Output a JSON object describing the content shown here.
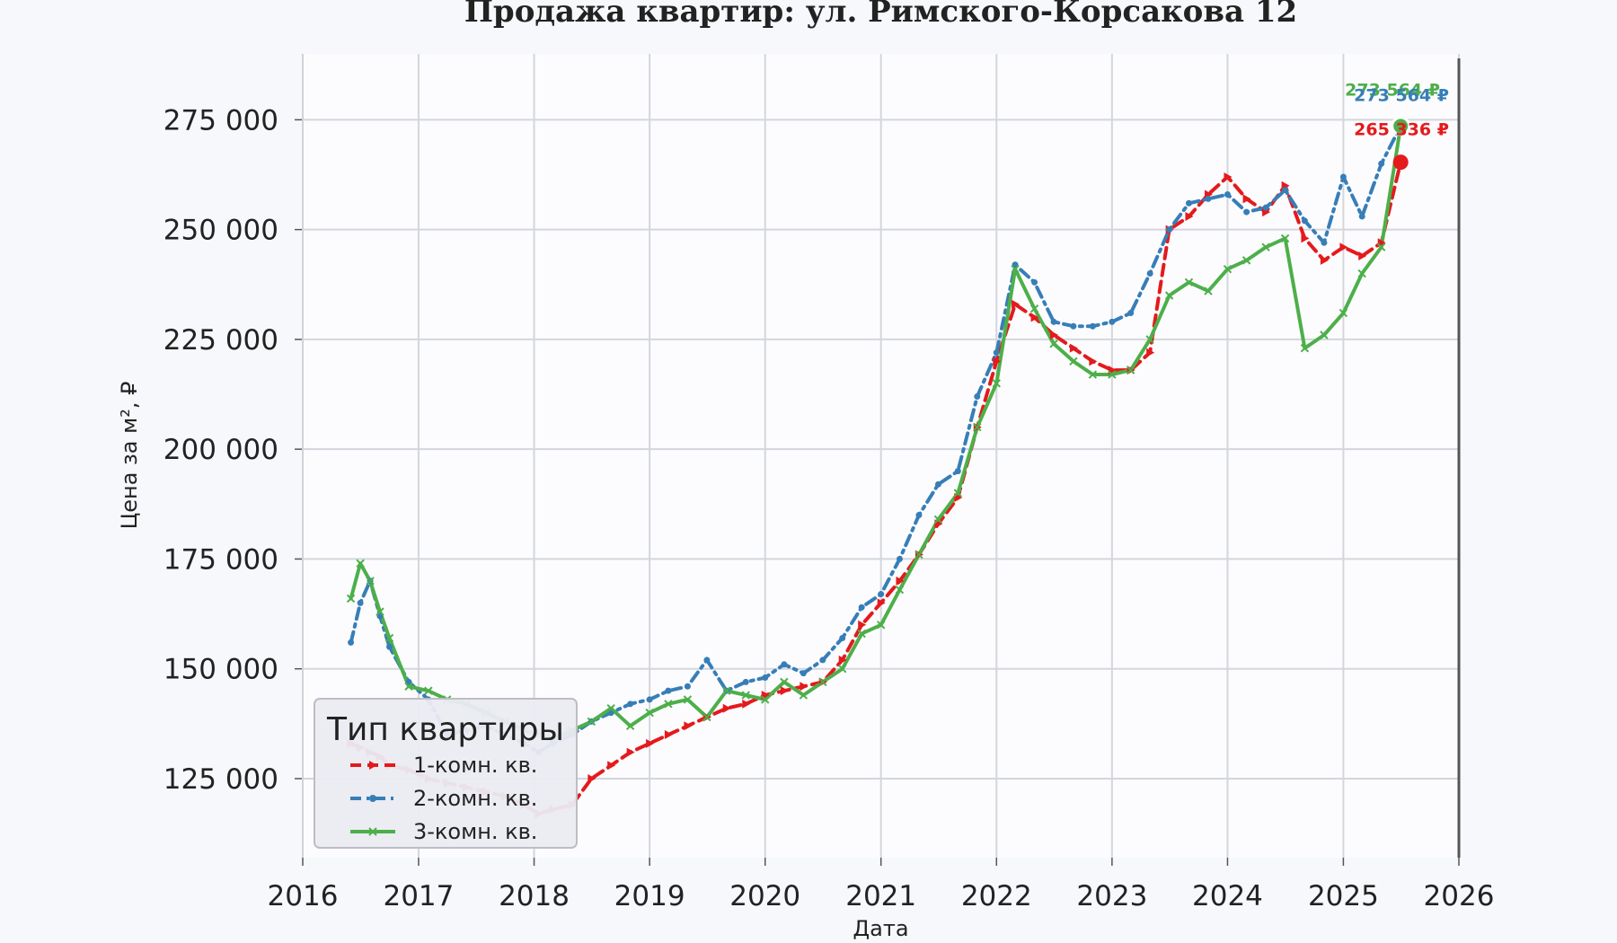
{
  "chart_data": {
    "type": "line",
    "title": "Продажа квартир: ул. Римского-Корсакова 12",
    "xlabel": "Дата",
    "ylabel": "Цена за м², ₽",
    "xlim": [
      "2016-01-01",
      "2026-01-01"
    ],
    "ylim": [
      107000,
      290000
    ],
    "x_ticks": [
      "2016",
      "2017",
      "2018",
      "2019",
      "2020",
      "2021",
      "2022",
      "2023",
      "2024",
      "2025",
      "2026"
    ],
    "y_ticks": [
      "125 000",
      "150 000",
      "175 000",
      "200 000",
      "225 000",
      "250 000",
      "275 000"
    ],
    "y_tick_values": [
      125000,
      150000,
      175000,
      200000,
      225000,
      250000,
      275000
    ],
    "grid": true,
    "legend": {
      "title": "Тип квартиры",
      "placement": "lower-left",
      "entries": [
        "1-комн. кв.",
        "2-комн. кв.",
        "3-комн. кв."
      ]
    },
    "series": [
      {
        "name": "1-комн. кв.",
        "color": "#e41a1c",
        "style": "dashed",
        "marker": "triangle-right",
        "points": [
          [
            "2016-06-01",
            133000
          ],
          [
            "2016-07-01",
            132000
          ],
          [
            "2016-08-01",
            131000
          ],
          [
            "2016-09-01",
            130000
          ],
          [
            "2016-10-01",
            128000
          ],
          [
            "2016-12-01",
            127000
          ],
          [
            "2017-02-01",
            125000
          ],
          [
            "2017-04-01",
            124000
          ],
          [
            "2017-06-01",
            123000
          ],
          [
            "2017-08-01",
            122000
          ],
          [
            "2017-10-01",
            121000
          ],
          [
            "2017-12-01",
            119000
          ],
          [
            "2018-01-15",
            117000
          ],
          [
            "2018-03-01",
            118000
          ],
          [
            "2018-05-01",
            119000
          ],
          [
            "2018-07-01",
            125000
          ],
          [
            "2018-09-01",
            128000
          ],
          [
            "2018-11-01",
            131000
          ],
          [
            "2019-01-01",
            133000
          ],
          [
            "2019-03-01",
            135000
          ],
          [
            "2019-05-01",
            137000
          ],
          [
            "2019-07-01",
            139000
          ],
          [
            "2019-09-01",
            141000
          ],
          [
            "2019-11-01",
            142000
          ],
          [
            "2020-01-01",
            144000
          ],
          [
            "2020-03-01",
            145000
          ],
          [
            "2020-05-01",
            146000
          ],
          [
            "2020-07-01",
            147000
          ],
          [
            "2020-09-01",
            152000
          ],
          [
            "2020-11-01",
            160000
          ],
          [
            "2021-01-01",
            165000
          ],
          [
            "2021-03-01",
            170000
          ],
          [
            "2021-05-01",
            176000
          ],
          [
            "2021-07-01",
            183000
          ],
          [
            "2021-09-01",
            189000
          ],
          [
            "2021-11-01",
            205000
          ],
          [
            "2022-01-01",
            220000
          ],
          [
            "2022-03-01",
            233000
          ],
          [
            "2022-05-01",
            230000
          ],
          [
            "2022-07-01",
            226000
          ],
          [
            "2022-09-01",
            223000
          ],
          [
            "2022-11-01",
            220000
          ],
          [
            "2023-01-01",
            218000
          ],
          [
            "2023-03-01",
            218000
          ],
          [
            "2023-05-01",
            222000
          ],
          [
            "2023-07-01",
            250000
          ],
          [
            "2023-09-01",
            253000
          ],
          [
            "2023-11-01",
            258000
          ],
          [
            "2024-01-01",
            262000
          ],
          [
            "2024-03-01",
            257000
          ],
          [
            "2024-05-01",
            254000
          ],
          [
            "2024-07-01",
            260000
          ],
          [
            "2024-09-01",
            248000
          ],
          [
            "2024-11-01",
            243000
          ],
          [
            "2025-01-01",
            246000
          ],
          [
            "2025-03-01",
            244000
          ],
          [
            "2025-05-01",
            247000
          ],
          [
            "2025-07-01",
            265336
          ]
        ]
      },
      {
        "name": "2-комн. кв.",
        "color": "#377eb8",
        "style": "dashdot",
        "marker": "circle",
        "points": [
          [
            "2016-06-01",
            156000
          ],
          [
            "2016-07-01",
            165000
          ],
          [
            "2016-08-01",
            170000
          ],
          [
            "2016-09-01",
            162000
          ],
          [
            "2016-10-01",
            155000
          ],
          [
            "2016-12-01",
            147000
          ],
          [
            "2017-02-01",
            143000
          ],
          [
            "2017-04-01",
            135000
          ],
          [
            "2017-06-01",
            136000
          ],
          [
            "2017-08-01",
            137000
          ],
          [
            "2017-10-01",
            135000
          ],
          [
            "2017-12-01",
            133000
          ],
          [
            "2018-01-15",
            131000
          ],
          [
            "2018-03-01",
            133000
          ],
          [
            "2018-05-01",
            135000
          ],
          [
            "2018-07-01",
            138000
          ],
          [
            "2018-09-01",
            140000
          ],
          [
            "2018-11-01",
            142000
          ],
          [
            "2019-01-01",
            143000
          ],
          [
            "2019-03-01",
            145000
          ],
          [
            "2019-05-01",
            146000
          ],
          [
            "2019-07-01",
            152000
          ],
          [
            "2019-09-01",
            145000
          ],
          [
            "2019-11-01",
            147000
          ],
          [
            "2020-01-01",
            148000
          ],
          [
            "2020-03-01",
            151000
          ],
          [
            "2020-05-01",
            149000
          ],
          [
            "2020-07-01",
            152000
          ],
          [
            "2020-09-01",
            157000
          ],
          [
            "2020-11-01",
            164000
          ],
          [
            "2021-01-01",
            167000
          ],
          [
            "2021-03-01",
            175000
          ],
          [
            "2021-05-01",
            185000
          ],
          [
            "2021-07-01",
            192000
          ],
          [
            "2021-09-01",
            195000
          ],
          [
            "2021-11-01",
            212000
          ],
          [
            "2022-01-01",
            222000
          ],
          [
            "2022-03-01",
            242000
          ],
          [
            "2022-05-01",
            238000
          ],
          [
            "2022-07-01",
            229000
          ],
          [
            "2022-09-01",
            228000
          ],
          [
            "2022-11-01",
            228000
          ],
          [
            "2023-01-01",
            229000
          ],
          [
            "2023-03-01",
            231000
          ],
          [
            "2023-05-01",
            240000
          ],
          [
            "2023-07-01",
            250000
          ],
          [
            "2023-09-01",
            256000
          ],
          [
            "2023-11-01",
            257000
          ],
          [
            "2024-01-01",
            258000
          ],
          [
            "2024-03-01",
            254000
          ],
          [
            "2024-05-01",
            255000
          ],
          [
            "2024-07-01",
            259000
          ],
          [
            "2024-09-01",
            252000
          ],
          [
            "2024-11-01",
            247000
          ],
          [
            "2025-01-01",
            262000
          ],
          [
            "2025-03-01",
            253000
          ],
          [
            "2025-05-01",
            265000
          ],
          [
            "2025-07-01",
            273564
          ]
        ]
      },
      {
        "name": "3-комн. кв.",
        "color": "#4daf4a",
        "style": "solid",
        "marker": "x",
        "points": [
          [
            "2016-06-01",
            166000
          ],
          [
            "2016-07-01",
            174000
          ],
          [
            "2016-08-01",
            170000
          ],
          [
            "2016-09-01",
            163000
          ],
          [
            "2016-10-01",
            157000
          ],
          [
            "2016-12-01",
            146000
          ],
          [
            "2017-02-01",
            145000
          ],
          [
            "2017-04-01",
            143000
          ],
          [
            "2017-06-01",
            142000
          ],
          [
            "2017-08-01",
            140000
          ],
          [
            "2017-10-01",
            138000
          ],
          [
            "2017-12-01",
            136000
          ],
          [
            "2018-01-15",
            135000
          ],
          [
            "2018-03-01",
            134000
          ],
          [
            "2018-05-01",
            136000
          ],
          [
            "2018-07-01",
            138000
          ],
          [
            "2018-09-01",
            141000
          ],
          [
            "2018-11-01",
            137000
          ],
          [
            "2019-01-01",
            140000
          ],
          [
            "2019-03-01",
            142000
          ],
          [
            "2019-05-01",
            143000
          ],
          [
            "2019-07-01",
            139000
          ],
          [
            "2019-09-01",
            145000
          ],
          [
            "2019-11-01",
            144000
          ],
          [
            "2020-01-01",
            143000
          ],
          [
            "2020-03-01",
            147000
          ],
          [
            "2020-05-01",
            144000
          ],
          [
            "2020-07-01",
            147000
          ],
          [
            "2020-09-01",
            150000
          ],
          [
            "2020-11-01",
            158000
          ],
          [
            "2021-01-01",
            160000
          ],
          [
            "2021-03-01",
            168000
          ],
          [
            "2021-05-01",
            176000
          ],
          [
            "2021-07-01",
            184000
          ],
          [
            "2021-09-01",
            190000
          ],
          [
            "2021-11-01",
            205000
          ],
          [
            "2022-01-01",
            215000
          ],
          [
            "2022-03-01",
            241000
          ],
          [
            "2022-05-01",
            232000
          ],
          [
            "2022-07-01",
            224000
          ],
          [
            "2022-09-01",
            220000
          ],
          [
            "2022-11-01",
            217000
          ],
          [
            "2023-01-01",
            217000
          ],
          [
            "2023-03-01",
            218000
          ],
          [
            "2023-05-01",
            225000
          ],
          [
            "2023-07-01",
            235000
          ],
          [
            "2023-09-01",
            238000
          ],
          [
            "2023-11-01",
            236000
          ],
          [
            "2024-01-01",
            241000
          ],
          [
            "2024-03-01",
            243000
          ],
          [
            "2024-05-01",
            246000
          ],
          [
            "2024-07-01",
            248000
          ],
          [
            "2024-09-01",
            223000
          ],
          [
            "2024-11-01",
            226000
          ],
          [
            "2025-01-01",
            231000
          ],
          [
            "2025-03-01",
            240000
          ],
          [
            "2025-05-01",
            246000
          ],
          [
            "2025-07-01",
            273564
          ]
        ]
      }
    ],
    "annotations": [
      {
        "text": "273 564 ₽",
        "series": "3-комн. кв.",
        "x": "2025-07-01",
        "y": 273564
      },
      {
        "text": "273 564 ₽",
        "series": "2-комн. кв.",
        "x": "2025-07-01",
        "y": 273564
      },
      {
        "text": "265 336 ₽",
        "series": "1-комн. кв.",
        "x": "2025-07-01",
        "y": 265336
      }
    ],
    "reference_line": {
      "x": "2026-01-01"
    }
  }
}
